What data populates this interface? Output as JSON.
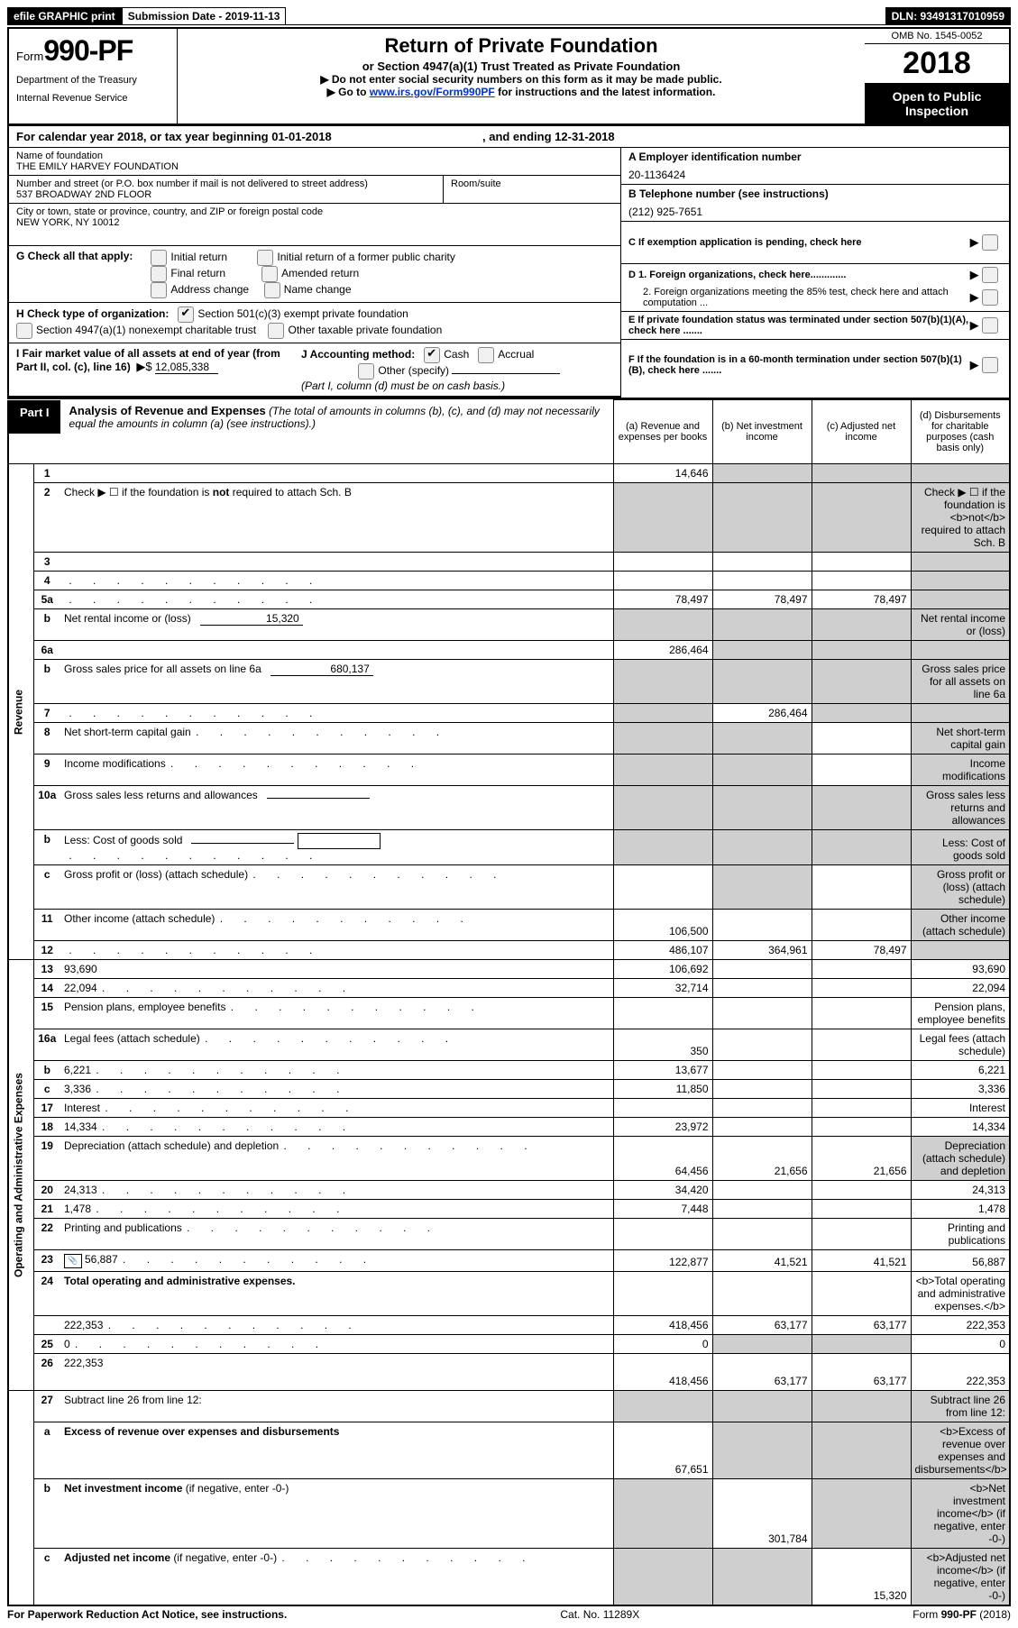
{
  "topbar": {
    "efile": "efile GRAPHIC print",
    "submission": "Submission Date - 2019-11-13",
    "dln": "DLN: 93491317010959"
  },
  "header": {
    "form_word": "Form",
    "form_no": "990-PF",
    "dept1": "Department of the Treasury",
    "dept2": "Internal Revenue Service",
    "title": "Return of Private Foundation",
    "subtitle": "or Section 4947(a)(1) Trust Treated as Private Foundation",
    "note1": "▶ Do not enter social security numbers on this form as it may be made public.",
    "note2a": "▶ Go to ",
    "note2link": "www.irs.gov/Form990PF",
    "note2b": " for instructions and the latest information.",
    "omb": "OMB No. 1545-0052",
    "year": "2018",
    "open": "Open to Public Inspection"
  },
  "calendar": {
    "a": "For calendar year 2018, or tax year beginning 01-01-2018",
    "b": ", and ending 12-31-2018"
  },
  "entity": {
    "name_lbl": "Name of foundation",
    "name": "THE EMILY HARVEY FOUNDATION",
    "addr_lbl": "Number and street (or P.O. box number if mail is not delivered to street address)",
    "addr": "537 BROADWAY 2ND FLOOR",
    "room_lbl": "Room/suite",
    "city_lbl": "City or town, state or province, country, and ZIP or foreign postal code",
    "city": "NEW YORK, NY  10012"
  },
  "rightbox": {
    "A_lbl": "A Employer identification number",
    "A_val": "20-1136424",
    "B_lbl": "B Telephone number (see instructions)",
    "B_val": "(212) 925-7651",
    "C": "C  If exemption application is pending, check here",
    "D1": "D 1. Foreign organizations, check here.............",
    "D2": "2. Foreign organizations meeting the 85% test, check here and attach computation ...",
    "E": "E   If private foundation status was terminated under section 507(b)(1)(A), check here .......",
    "F": "F   If the foundation is in a 60-month termination under section 507(b)(1)(B), check here ......."
  },
  "G": {
    "label": "G Check all that apply:",
    "o1": "Initial return",
    "o2": "Initial return of a former public charity",
    "o3": "Final return",
    "o4": "Amended return",
    "o5": "Address change",
    "o6": "Name change"
  },
  "H": {
    "label": "H Check type of organization:",
    "o1": "Section 501(c)(3) exempt private foundation",
    "o2": "Section 4947(a)(1) nonexempt charitable trust",
    "o3": "Other taxable private foundation"
  },
  "I": {
    "text": "I Fair market value of all assets at end of year (from Part II, col. (c), line 16)",
    "arrow": "▶$",
    "val": "12,085,338"
  },
  "J": {
    "label": "J Accounting method:",
    "o1": "Cash",
    "o2": "Accrual",
    "o3": "Other (specify)",
    "note": "(Part I, column (d) must be on cash basis.)"
  },
  "part1": {
    "tag": "Part I",
    "title": "Analysis of Revenue and Expenses",
    "note": " (The total of amounts in columns (b), (c), and (d) may not necessarily equal the amounts in column (a) (see instructions).)",
    "col_a": "(a)    Revenue and expenses per books",
    "col_b": "(b)    Net investment income",
    "col_c": "(c)    Adjusted net income",
    "col_d": "(d)    Disbursements for charitable purposes (cash basis only)"
  },
  "sidelabels": {
    "rev": "Revenue",
    "exp": "Operating and Administrative Expenses"
  },
  "rows": {
    "1": {
      "n": "1",
      "d": "",
      "a": "14,646",
      "b": "",
      "c": "",
      "shade": [
        "b",
        "c",
        "d"
      ]
    },
    "2": {
      "n": "2",
      "d": "Check ▶ ☐ if the foundation is <b>not</b> required to attach Sch. B",
      "shade": [
        "a",
        "b",
        "c",
        "d"
      ]
    },
    "3": {
      "n": "3",
      "d": "",
      "a": "",
      "b": "",
      "c": "",
      "shade": [
        "d"
      ]
    },
    "4": {
      "n": "4",
      "d": "",
      "dots": true,
      "a": "",
      "b": "",
      "c": "",
      "shade": [
        "d"
      ]
    },
    "5a": {
      "n": "5a",
      "d": "",
      "dots": true,
      "a": "78,497",
      "b": "78,497",
      "c": "78,497",
      "shade": [
        "d"
      ]
    },
    "5b": {
      "n": "b",
      "d": "Net rental income or (loss)",
      "inline": "15,320",
      "shade": [
        "a",
        "b",
        "c",
        "d"
      ]
    },
    "6a": {
      "n": "6a",
      "d": "",
      "a": "286,464",
      "b": "",
      "c": "",
      "shade": [
        "b",
        "c",
        "d"
      ]
    },
    "6b": {
      "n": "b",
      "d": "Gross sales price for all assets on line 6a",
      "inline": "680,137",
      "shade": [
        "a",
        "b",
        "c",
        "d"
      ]
    },
    "7": {
      "n": "7",
      "d": "",
      "dots": true,
      "a": "",
      "b": "286,464",
      "c": "",
      "shade": [
        "a",
        "c",
        "d"
      ]
    },
    "8": {
      "n": "8",
      "d": "Net short-term capital gain",
      "dots": true,
      "shade": [
        "a",
        "b",
        "d"
      ]
    },
    "9": {
      "n": "9",
      "d": "Income modifications",
      "dots": true,
      "shade": [
        "a",
        "b",
        "d"
      ]
    },
    "10a": {
      "n": "10a",
      "d": "Gross sales less returns and allowances",
      "inline": "",
      "shade": [
        "a",
        "b",
        "c",
        "d"
      ]
    },
    "10b": {
      "n": "b",
      "d": "Less: Cost of goods sold",
      "dots": true,
      "inline": "",
      "box": true,
      "shade": [
        "a",
        "b",
        "c",
        "d"
      ]
    },
    "10c": {
      "n": "c",
      "d": "Gross profit or (loss) (attach schedule)",
      "dots": true,
      "shade": [
        "b",
        "d"
      ]
    },
    "11": {
      "n": "11",
      "d": "Other income (attach schedule)",
      "dots": true,
      "a": "106,500",
      "shade": [
        "d"
      ]
    },
    "12": {
      "n": "12",
      "d": "",
      "dots": true,
      "a": "486,107",
      "b": "364,961",
      "c": "78,497",
      "shade": [
        "d"
      ],
      "bold": true
    },
    "13": {
      "n": "13",
      "d": "93,690",
      "a": "106,692"
    },
    "14": {
      "n": "14",
      "d": "22,094",
      "dots": true,
      "a": "32,714"
    },
    "15": {
      "n": "15",
      "d": "Pension plans, employee benefits",
      "dots": true
    },
    "16a": {
      "n": "16a",
      "d": "Legal fees (attach schedule)",
      "dots": true,
      "a": "350"
    },
    "16b": {
      "n": "b",
      "d": "6,221",
      "dots": true,
      "a": "13,677"
    },
    "16c": {
      "n": "c",
      "d": "3,336",
      "dots": true,
      "a": "11,850"
    },
    "17": {
      "n": "17",
      "d": "Interest",
      "dots": true
    },
    "18": {
      "n": "18",
      "d": "14,334",
      "dots": true,
      "a": "23,972"
    },
    "19": {
      "n": "19",
      "d": "Depreciation (attach schedule) and depletion",
      "dots": true,
      "a": "64,456",
      "b": "21,656",
      "c": "21,656",
      "shade": [
        "d"
      ]
    },
    "20": {
      "n": "20",
      "d": "24,313",
      "dots": true,
      "a": "34,420"
    },
    "21": {
      "n": "21",
      "d": "1,478",
      "dots": true,
      "a": "7,448"
    },
    "22": {
      "n": "22",
      "d": "Printing and publications",
      "dots": true
    },
    "23": {
      "n": "23",
      "d": "56,887",
      "dots": true,
      "icon": true,
      "a": "122,877",
      "b": "41,521",
      "c": "41,521"
    },
    "24": {
      "n": "24",
      "d": "<b>Total operating and administrative expenses.</b>",
      "nocells": true
    },
    "24b": {
      "n": "",
      "d": "222,353",
      "dots": true,
      "a": "418,456",
      "b": "63,177",
      "c": "63,177"
    },
    "25": {
      "n": "25",
      "d": "0",
      "dots": true,
      "a": "0",
      "shade": [
        "b",
        "c"
      ]
    },
    "26": {
      "n": "26",
      "d": "222,353",
      "a": "418,456",
      "b": "63,177",
      "c": "63,177",
      "tall": true
    },
    "27": {
      "n": "27",
      "d": "Subtract line 26 from line 12:",
      "shade": [
        "a",
        "b",
        "c",
        "d"
      ]
    },
    "27a": {
      "n": "a",
      "d": "<b>Excess of revenue over expenses and disbursements</b>",
      "a": "67,651",
      "shade": [
        "b",
        "c",
        "d"
      ],
      "tall": true
    },
    "27b": {
      "n": "b",
      "d": "<b>Net investment income</b> (if negative, enter -0-)",
      "b": "301,784",
      "shade": [
        "a",
        "c",
        "d"
      ]
    },
    "27c": {
      "n": "c",
      "d": "<b>Adjusted net income</b> (if negative, enter -0-)",
      "dots": true,
      "c": "15,320",
      "shade": [
        "a",
        "b",
        "d"
      ]
    }
  },
  "footer": {
    "l": "For Paperwork Reduction Act Notice, see instructions.",
    "c": "Cat. No. 11289X",
    "r": "Form 990-PF (2018)"
  }
}
